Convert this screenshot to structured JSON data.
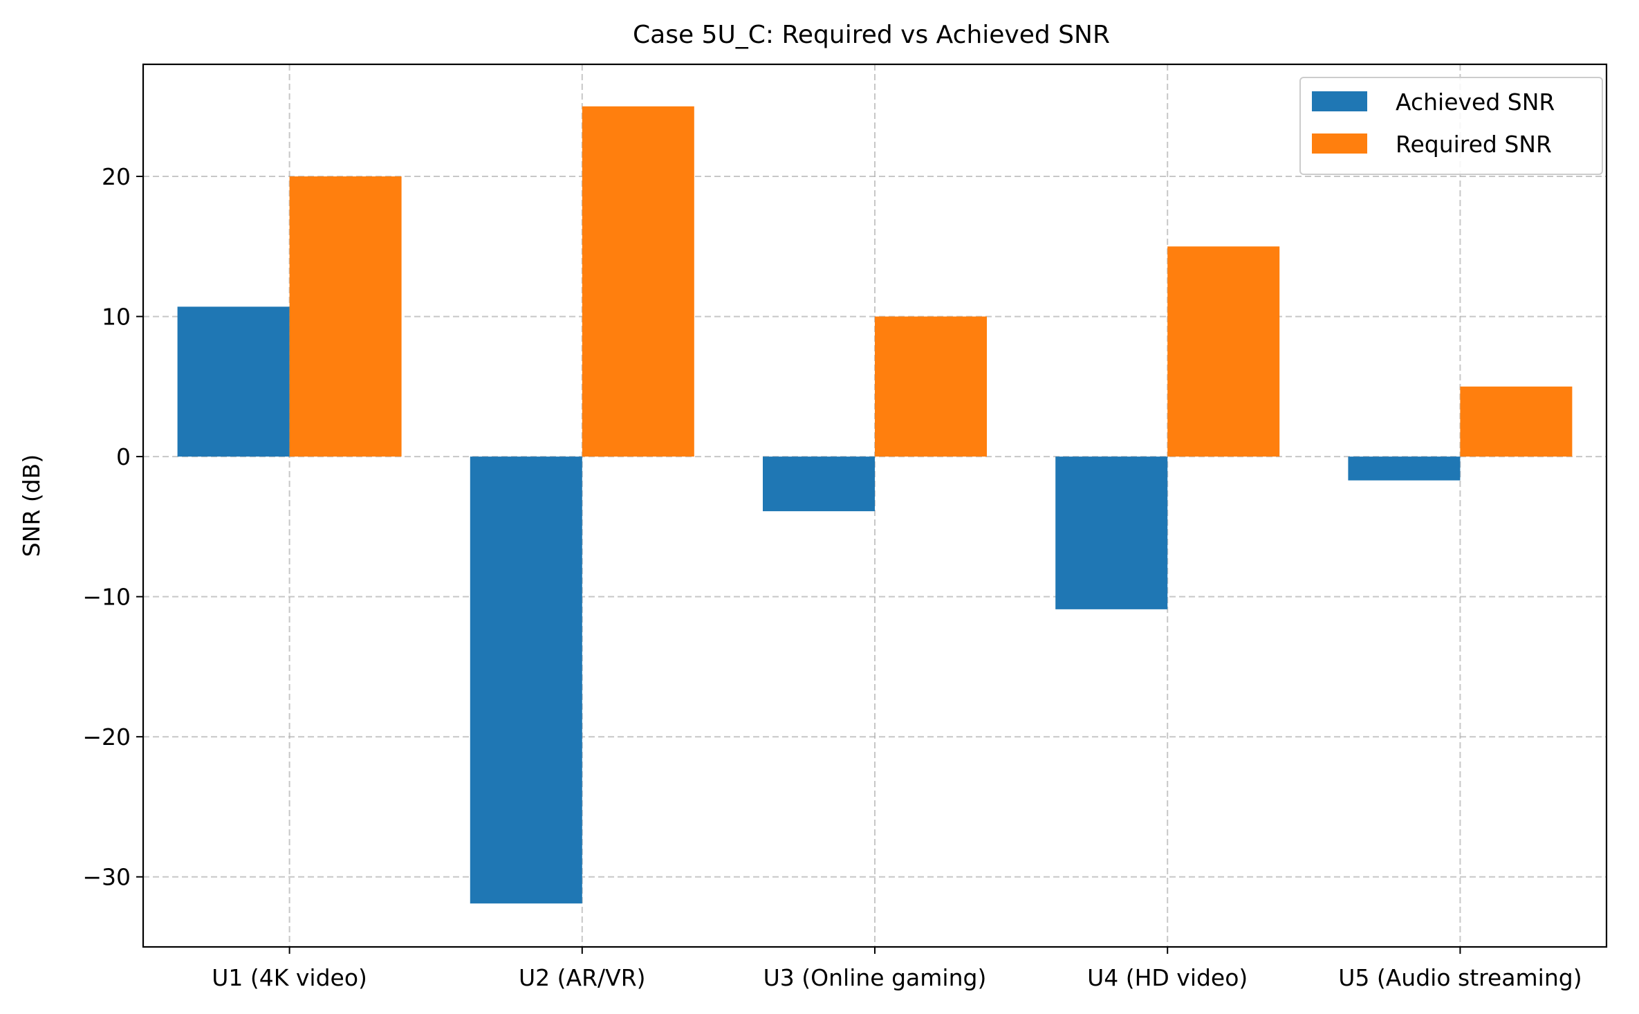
{
  "chart_data": {
    "type": "bar",
    "title": "Case 5U_C: Required vs Achieved SNR",
    "xlabel": "",
    "ylabel": "SNR (dB)",
    "categories": [
      "U1 (4K video)",
      "U2 (AR/VR)",
      "U3 (Online gaming)",
      "U4 (HD video)",
      "U5 (Audio streaming)"
    ],
    "series": [
      {
        "name": "Achieved SNR",
        "color": "#1f77b4",
        "values": [
          10.7,
          -31.9,
          -3.9,
          -10.9,
          -1.7
        ]
      },
      {
        "name": "Required SNR",
        "color": "#ff7f0e",
        "values": [
          20,
          25,
          10,
          15,
          5
        ]
      }
    ],
    "ylim": [
      -35,
      28
    ],
    "yticks": [
      -30,
      -20,
      -10,
      0,
      10,
      20
    ],
    "ytick_labels": [
      "−30",
      "−20",
      "−10",
      "0",
      "10",
      "20"
    ],
    "grid": true,
    "legend_position": "upper right"
  }
}
